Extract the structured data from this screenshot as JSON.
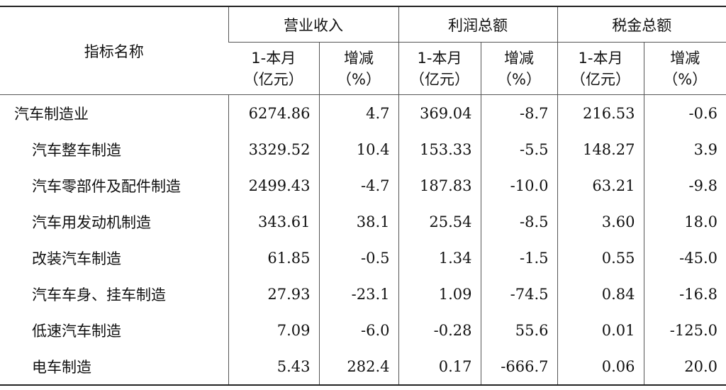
{
  "table": {
    "corner": "指标名称",
    "groups": [
      {
        "title": "营业收入",
        "columns": [
          [
            "1-本月",
            "（亿元）"
          ],
          [
            "增减",
            "（%）"
          ]
        ]
      },
      {
        "title": "利润总额",
        "columns": [
          [
            "1-本月",
            "（亿元）"
          ],
          [
            "增减",
            "（%）"
          ]
        ]
      },
      {
        "title": "税金总额",
        "columns": [
          [
            "1-本月",
            "（亿元）"
          ],
          [
            "增减",
            "（%）"
          ]
        ]
      }
    ],
    "rows": [
      [
        "汽车制造业",
        "6274.86",
        "4.7",
        "369.04",
        "-8.7",
        "216.53",
        "-0.6"
      ],
      [
        "汽车整车制造",
        "3329.52",
        "10.4",
        "153.33",
        "-5.5",
        "148.27",
        "3.9"
      ],
      [
        "汽车零部件及配件制造",
        "2499.43",
        "-4.7",
        "187.83",
        "-10.0",
        "63.21",
        "-9.8"
      ],
      [
        "汽车用发动机制造",
        "343.61",
        "38.1",
        "25.54",
        "-8.5",
        "3.60",
        "18.0"
      ],
      [
        "改装汽车制造",
        "61.85",
        "-0.5",
        "1.34",
        "-1.5",
        "0.55",
        "-45.0"
      ],
      [
        "汽车车身、挂车制造",
        "27.93",
        "-23.1",
        "1.09",
        "-74.5",
        "0.84",
        "-16.8"
      ],
      [
        "低速汽车制造",
        "7.09",
        "-6.0",
        "-0.28",
        "55.6",
        "0.01",
        "-125.0"
      ],
      [
        "电车制造",
        "5.43",
        "282.4",
        "0.17",
        "-666.7",
        "0.06",
        "20.0"
      ]
    ]
  }
}
